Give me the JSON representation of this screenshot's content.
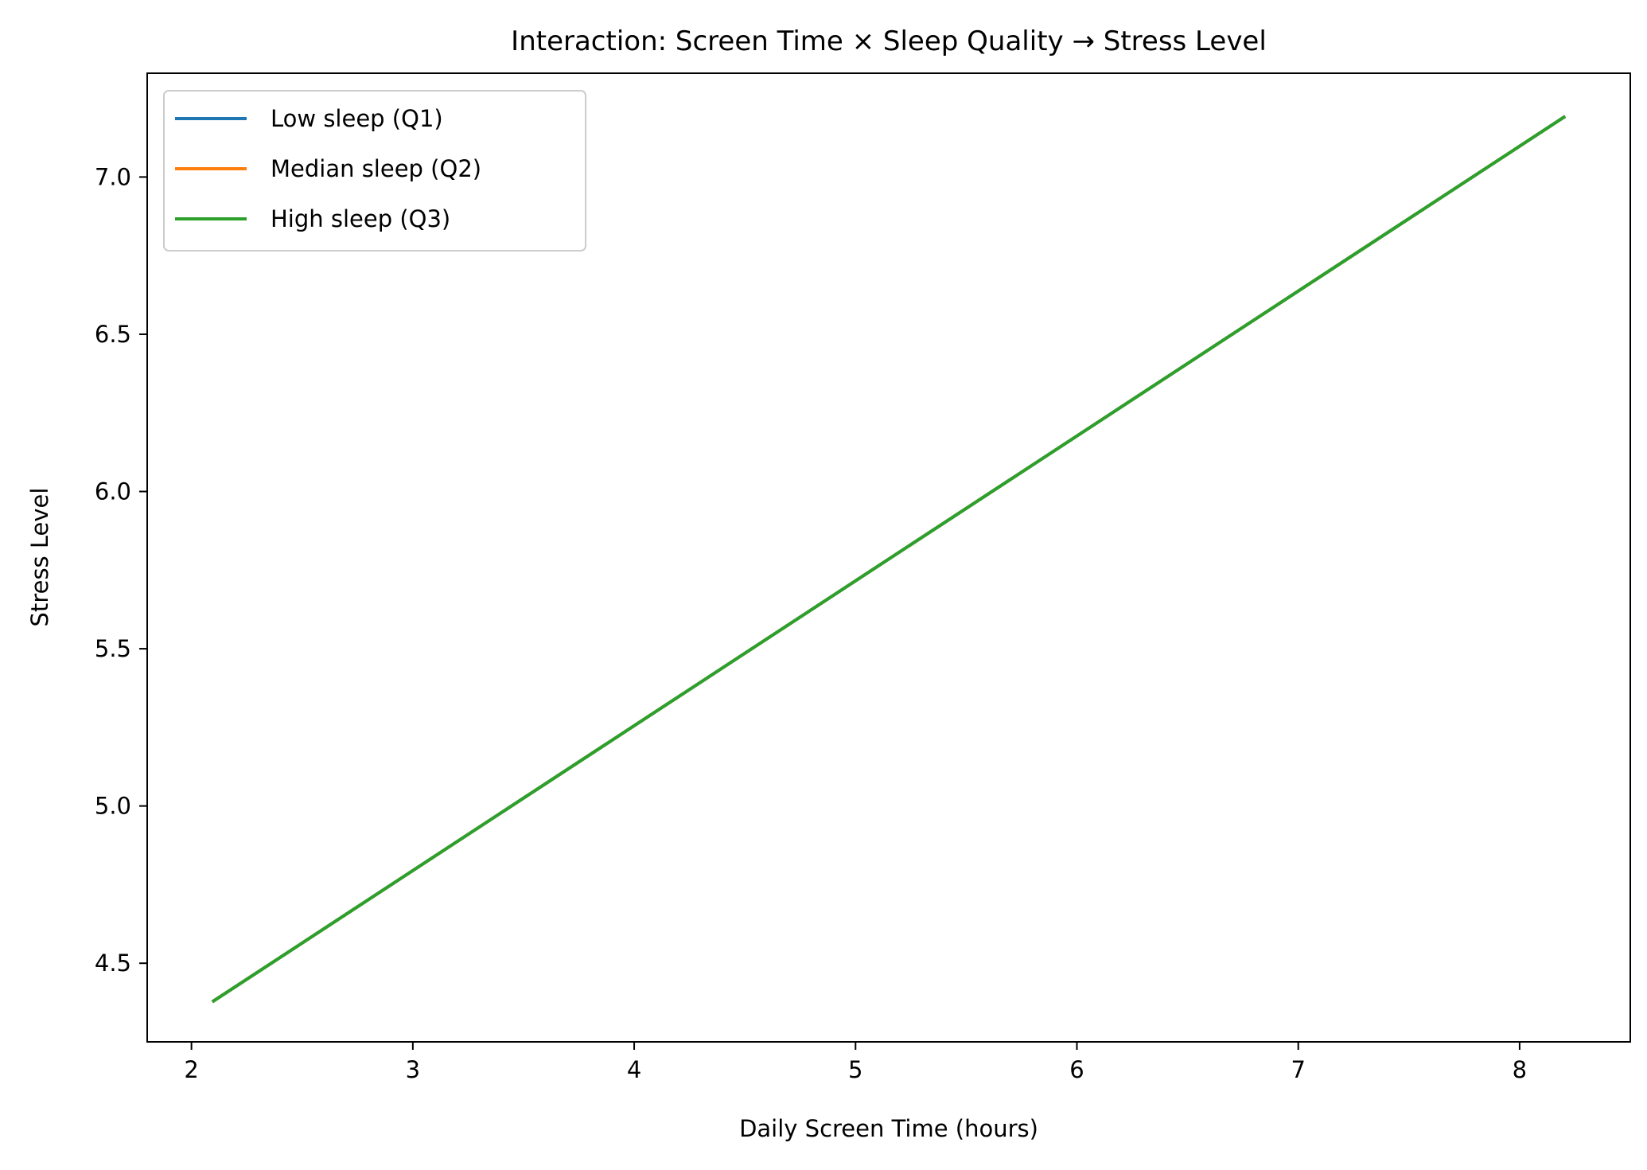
{
  "chart_data": {
    "type": "line",
    "title": "Interaction: Screen Time × Sleep Quality → Stress Level",
    "xlabel": "Daily Screen Time (hours)",
    "ylabel": "Stress Level",
    "xlim": [
      1.8,
      8.5
    ],
    "ylim": [
      4.25,
      7.33
    ],
    "xticks": [
      2,
      3,
      4,
      5,
      6,
      7,
      8
    ],
    "xtick_labels": [
      "2",
      "3",
      "4",
      "5",
      "6",
      "7",
      "8"
    ],
    "yticks": [
      4.5,
      5.0,
      5.5,
      6.0,
      6.5,
      7.0
    ],
    "ytick_labels": [
      "4.5",
      "5.0",
      "5.5",
      "6.0",
      "6.5",
      "7.0"
    ],
    "grid": false,
    "legend_position": "top-left",
    "series": [
      {
        "name": "Low sleep (Q1)",
        "color": "#1f77b4",
        "x": [
          2.1,
          8.2
        ],
        "y": [
          4.38,
          7.19
        ]
      },
      {
        "name": "Median sleep (Q2)",
        "color": "#ff7f0e",
        "x": [
          2.1,
          8.2
        ],
        "y": [
          4.38,
          7.19
        ]
      },
      {
        "name": "High sleep (Q3)",
        "color": "#2ca02c",
        "x": [
          2.1,
          8.2
        ],
        "y": [
          4.38,
          7.19
        ]
      }
    ]
  }
}
